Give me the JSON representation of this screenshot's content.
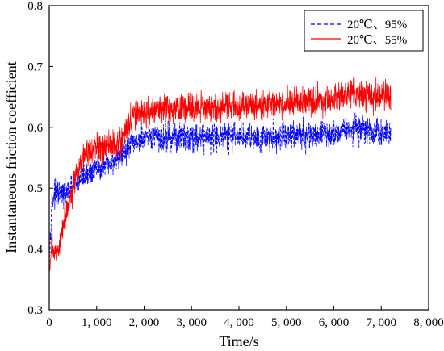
{
  "chart_data": {
    "type": "line",
    "title": "",
    "xlabel": "Time/s",
    "ylabel": "Instantaneous friction coefficient",
    "xlim": [
      0,
      8000
    ],
    "ylim": [
      0.3,
      0.8
    ],
    "xticks": [
      0,
      1000,
      2000,
      3000,
      4000,
      5000,
      6000,
      7000,
      8000
    ],
    "xtick_labels": [
      "0",
      "1, 000",
      "2, 000",
      "3, 000",
      "4, 000",
      "5, 000",
      "6, 000",
      "7, 000",
      "8, 000"
    ],
    "yticks": [
      0.3,
      0.4,
      0.5,
      0.6,
      0.7,
      0.8
    ],
    "ytick_labels": [
      "0.3",
      "0.4",
      "0.5",
      "0.6",
      "0.7",
      "0.8"
    ],
    "grid": false,
    "legend_position": "top-right",
    "series": [
      {
        "name": "20℃、95%",
        "color": "#0000ff",
        "line_style": "dashed",
        "x": [
          0,
          50,
          100,
          200,
          300,
          500,
          700,
          1000,
          1300,
          1500,
          1700,
          1800,
          2000,
          2500,
          3000,
          4000,
          5000,
          6000,
          6300,
          7000,
          7200
        ],
        "mean": [
          0.38,
          0.47,
          0.49,
          0.49,
          0.49,
          0.5,
          0.52,
          0.53,
          0.54,
          0.555,
          0.57,
          0.575,
          0.58,
          0.585,
          0.585,
          0.585,
          0.585,
          0.59,
          0.6,
          0.59,
          0.59
        ],
        "spread": [
          0.03,
          0.03,
          0.03,
          0.03,
          0.03,
          0.03,
          0.03,
          0.03,
          0.03,
          0.035,
          0.035,
          0.035,
          0.035,
          0.035,
          0.035,
          0.035,
          0.035,
          0.035,
          0.035,
          0.035,
          0.035
        ]
      },
      {
        "name": "20℃、55%",
        "color": "#ff0000",
        "line_style": "solid",
        "x": [
          0,
          50,
          100,
          200,
          300,
          500,
          700,
          1000,
          1300,
          1500,
          1700,
          1800,
          2000,
          2500,
          3000,
          4000,
          5000,
          6000,
          6300,
          7000,
          7200
        ],
        "mean": [
          0.36,
          0.41,
          0.39,
          0.4,
          0.44,
          0.5,
          0.555,
          0.565,
          0.57,
          0.575,
          0.61,
          0.62,
          0.625,
          0.63,
          0.63,
          0.635,
          0.64,
          0.645,
          0.655,
          0.65,
          0.65
        ],
        "spread": [
          0.03,
          0.03,
          0.025,
          0.025,
          0.03,
          0.035,
          0.035,
          0.035,
          0.035,
          0.035,
          0.035,
          0.035,
          0.035,
          0.035,
          0.035,
          0.035,
          0.035,
          0.035,
          0.04,
          0.035,
          0.035
        ]
      }
    ]
  }
}
